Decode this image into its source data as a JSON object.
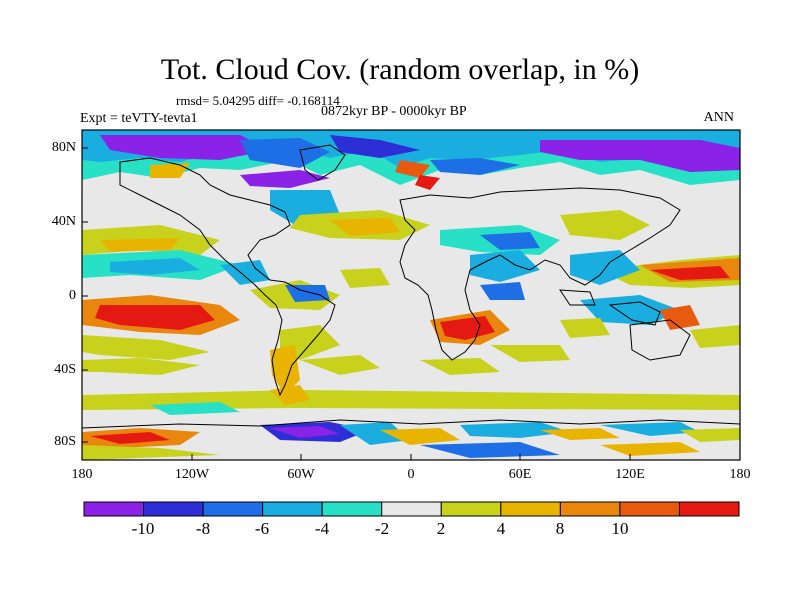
{
  "title": "Tot. Cloud Cov. (random overlap, in %)",
  "stats": "rmsd= 5.04295 diff= -0.168114",
  "experiment": "Expt = teVTY-tevta1",
  "period": "0872kyr BP - 0000kyr BP",
  "season": "ANN",
  "lon_ticks": [
    "180",
    "120W",
    "60W",
    "0",
    "60E",
    "120E",
    "180"
  ],
  "lat_ticks": [
    "80N",
    "40N",
    "0",
    "40S",
    "80S"
  ],
  "colorbar": {
    "labels": [
      "-10",
      "-8",
      "-6",
      "-4",
      "-2",
      "2",
      "4",
      "8",
      "10"
    ],
    "colors": [
      "#8b22e8",
      "#2e2ed6",
      "#1e6fe6",
      "#1aaee0",
      "#27e0c6",
      "#e8e8e8",
      "#c8d21c",
      "#e8b400",
      "#e8860e",
      "#e85a10",
      "#e41a12"
    ]
  }
}
